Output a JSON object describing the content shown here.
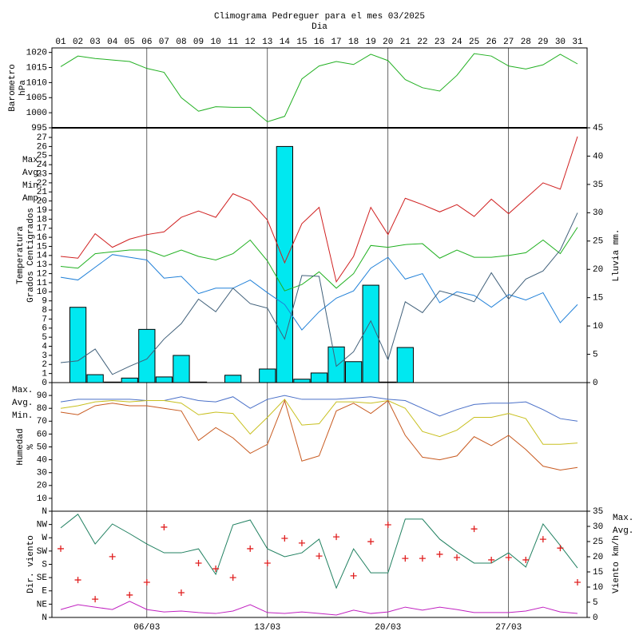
{
  "chart_data": {
    "type": "combo",
    "title": "Climograma Pedreguer para el mes 03/2025",
    "xlabel": "Dia",
    "categories": [
      "01",
      "02",
      "03",
      "04",
      "05",
      "06",
      "07",
      "08",
      "09",
      "10",
      "11",
      "12",
      "13",
      "14",
      "15",
      "16",
      "17",
      "18",
      "19",
      "20",
      "21",
      "22",
      "23",
      "24",
      "25",
      "26",
      "27",
      "28",
      "29",
      "30",
      "31"
    ],
    "xticks": [
      {
        "value": 6,
        "label": "06/03"
      },
      {
        "value": 13,
        "label": "13/03"
      },
      {
        "value": 20,
        "label": "20/03"
      },
      {
        "value": 27,
        "label": "27/03"
      }
    ],
    "grid": true,
    "panels": [
      {
        "ylabel": [
          "Barometro",
          "hPa"
        ],
        "ylabel_color": "#22b022",
        "ylim": [
          995,
          1021.5
        ],
        "yticks": [
          995,
          1000,
          1005,
          1010,
          1015,
          1020
        ],
        "series": [
          {
            "type": "line",
            "color": "#22b022",
            "values": [
              1015.3,
              1018.8,
              1018,
              1017.5,
              1017,
              1014.7,
              1013.4,
              1005,
              1000.5,
              1002,
              1001.8,
              1001.8,
              997,
              998.8,
              1011.2,
              1015.5,
              1017,
              1016,
              1019.4,
              1017.3,
              1011,
              1008.3,
              1007.2,
              1012.4,
              1019.6,
              1018.8,
              1015.5,
              1014.5,
              1015.9,
              1019.4,
              1016.2
            ]
          }
        ]
      },
      {
        "ylabel": [
          "Temperatura",
          "Grados Centigrados"
        ],
        "ylabel_color": "#d02020",
        "y2label": "Lluvia mm.",
        "y2label_color": "#00c8d8",
        "ylim": [
          0,
          28.06
        ],
        "yticks": [
          0,
          1,
          2,
          3,
          4,
          5,
          6,
          7,
          8,
          9,
          10,
          11,
          12,
          13,
          14,
          15,
          16,
          17,
          18,
          19,
          20,
          21,
          22,
          23,
          24,
          25,
          26,
          27
        ],
        "y2lim": [
          0,
          45
        ],
        "y2ticks": [
          0,
          5,
          10,
          15,
          20,
          25,
          30,
          35,
          40,
          45
        ],
        "legend": "left",
        "series": [
          {
            "type": "bar",
            "axis": "y2",
            "color": "#00e8f0",
            "values": [
              0,
              13.3,
              1.4,
              0.1,
              0.8,
              9.4,
              1,
              4.8,
              0.1,
              0,
              1.3,
              0,
              2.4,
              41.7,
              0.6,
              1.7,
              6.3,
              3.7,
              17.2,
              0.1,
              6.2,
              0,
              0,
              0,
              0,
              0,
              0,
              0,
              0,
              0,
              0
            ]
          },
          {
            "type": "line",
            "name": "Max.",
            "color": "#d02020",
            "values": [
              13.9,
              13.7,
              16.4,
              14.9,
              15.8,
              16.3,
              16.6,
              18.2,
              18.9,
              18.2,
              20.8,
              20,
              17.9,
              13.2,
              17.5,
              19.3,
              11.1,
              13.9,
              19.3,
              16.3,
              20.3,
              19.6,
              18.8,
              19.6,
              18.3,
              20.2,
              18.6,
              20.3,
              22,
              21.3,
              27.1
            ]
          },
          {
            "type": "line",
            "name": "Avg.",
            "color": "#20b020",
            "values": [
              12.8,
              12.6,
              14.2,
              14.4,
              14.6,
              14.6,
              13.9,
              14.6,
              13.9,
              13.5,
              14.2,
              15.7,
              13.4,
              10.1,
              10.8,
              12.2,
              10.4,
              12,
              15.1,
              14.9,
              15.2,
              15.3,
              13.7,
              14.6,
              13.8,
              13.8,
              14,
              14.3,
              15.7,
              14.2,
              17.1
            ]
          },
          {
            "type": "line",
            "name": "Min.",
            "color": "#2080d8",
            "values": [
              11.6,
              11.3,
              12.7,
              14.1,
              13.8,
              13.5,
              11.5,
              11.7,
              9.8,
              10.4,
              10.4,
              11.3,
              9.9,
              8.6,
              5.8,
              7.8,
              9.3,
              10.1,
              12.6,
              13.8,
              11.4,
              12,
              8.8,
              10,
              9.6,
              8.3,
              9.7,
              9.1,
              9.9,
              6.6,
              8.6
            ]
          },
          {
            "type": "line",
            "name": "Amp.",
            "color": "#40607a",
            "values": [
              2.2,
              2.4,
              3.7,
              0.9,
              1.8,
              2.6,
              4.8,
              6.5,
              9.2,
              7.8,
              10.4,
              8.7,
              8.2,
              4.8,
              11.8,
              11.7,
              1.8,
              3.4,
              6.8,
              2.5,
              8.9,
              7.7,
              10.1,
              9.6,
              8.9,
              12.1,
              9.2,
              11.4,
              12.3,
              14.6,
              18.7
            ]
          }
        ]
      },
      {
        "ylabel": [
          "Humedad",
          "%"
        ],
        "ylabel_color": "#c05020",
        "ylim": [
          0,
          100
        ],
        "yticks": [
          10,
          20,
          30,
          40,
          50,
          60,
          70,
          80,
          90
        ],
        "legend": "upper left",
        "series": [
          {
            "type": "line",
            "name": "Max.",
            "color": "#4a70c8",
            "values": [
              85,
              87,
              87,
              87,
              87,
              86,
              86,
              89,
              86,
              85,
              89,
              80,
              87,
              90,
              87,
              87,
              87,
              88,
              89,
              87,
              86,
              80,
              74,
              79,
              83,
              84,
              84,
              85,
              79,
              72,
              70
            ]
          },
          {
            "type": "line",
            "name": "Avg.",
            "color": "#c8c020",
            "values": [
              80,
              82,
              85,
              86,
              85,
              86,
              86,
              84,
              75,
              77,
              76,
              60,
              73,
              87,
              67,
              68,
              85,
              85,
              84,
              86,
              80,
              62,
              58,
              63,
              73,
              73,
              76,
              72,
              52,
              52,
              53
            ]
          },
          {
            "type": "line",
            "name": "Min.",
            "color": "#c85a20",
            "values": [
              77,
              75,
              82,
              84,
              82,
              82,
              80,
              78,
              55,
              65,
              57,
              45,
              52,
              86,
              39,
              43,
              78,
              84,
              76,
              86,
              59,
              42,
              40,
              43,
              58,
              51,
              59,
              48,
              35,
              32,
              34
            ]
          }
        ]
      },
      {
        "ylabel": [
          "Dir. viento"
        ],
        "ylabel_color": "#d02020",
        "y2label": "Viento km/h",
        "y2label_color": "#c020c0",
        "ylim": [
          0,
          360
        ],
        "yticks": [
          {
            "value": 0,
            "label": "N"
          },
          {
            "value": 45,
            "label": "NE"
          },
          {
            "value": 90,
            "label": "E"
          },
          {
            "value": 135,
            "label": "SE"
          },
          {
            "value": 180,
            "label": "S"
          },
          {
            "value": 225,
            "label": "SW"
          },
          {
            "value": 270,
            "label": "W"
          },
          {
            "value": 315,
            "label": "NW"
          },
          {
            "value": 360,
            "label": "N"
          }
        ],
        "y2lim": [
          0,
          35
        ],
        "y2ticks": [
          0,
          5,
          10,
          15,
          20,
          25,
          30,
          35
        ],
        "legend": "upper right",
        "series": [
          {
            "type": "line",
            "name": "Max.",
            "axis": "y2",
            "color": "#208060",
            "values": [
              29.5,
              34,
              24.2,
              30.8,
              27.6,
              24.2,
              21.3,
              21.3,
              22.6,
              14.2,
              30.5,
              32.1,
              22.6,
              20,
              21.3,
              25.8,
              9.7,
              22.6,
              14.7,
              14.7,
              32.4,
              32.4,
              25.8,
              21.6,
              17.9,
              17.9,
              21.3,
              16.6,
              30.8,
              23.7,
              16.3
            ]
          },
          {
            "type": "line",
            "name": "Avg.",
            "axis": "y2",
            "color": "#c020c0",
            "values": [
              2.6,
              4.2,
              3.4,
              2.6,
              5.3,
              2.6,
              1.8,
              2.1,
              1.6,
              1.3,
              2.1,
              4.2,
              1.6,
              1.3,
              1.8,
              1.3,
              0.8,
              2.4,
              1.3,
              1.8,
              3.4,
              2.4,
              3.4,
              2.6,
              1.6,
              1.6,
              1.6,
              2.1,
              3.4,
              1.8,
              1.3
            ]
          },
          {
            "type": "scatter",
            "color": "#e02020",
            "values": [
              233,
              127,
              62,
              206,
              76,
              119,
              306,
              84,
              184,
              165,
              135,
              233,
              184,
              268,
              252,
              208,
              273,
              141,
              257,
              314,
              200,
              200,
              214,
              203,
              300,
              195,
              203,
              195,
              265,
              235,
              119
            ]
          }
        ]
      }
    ]
  }
}
